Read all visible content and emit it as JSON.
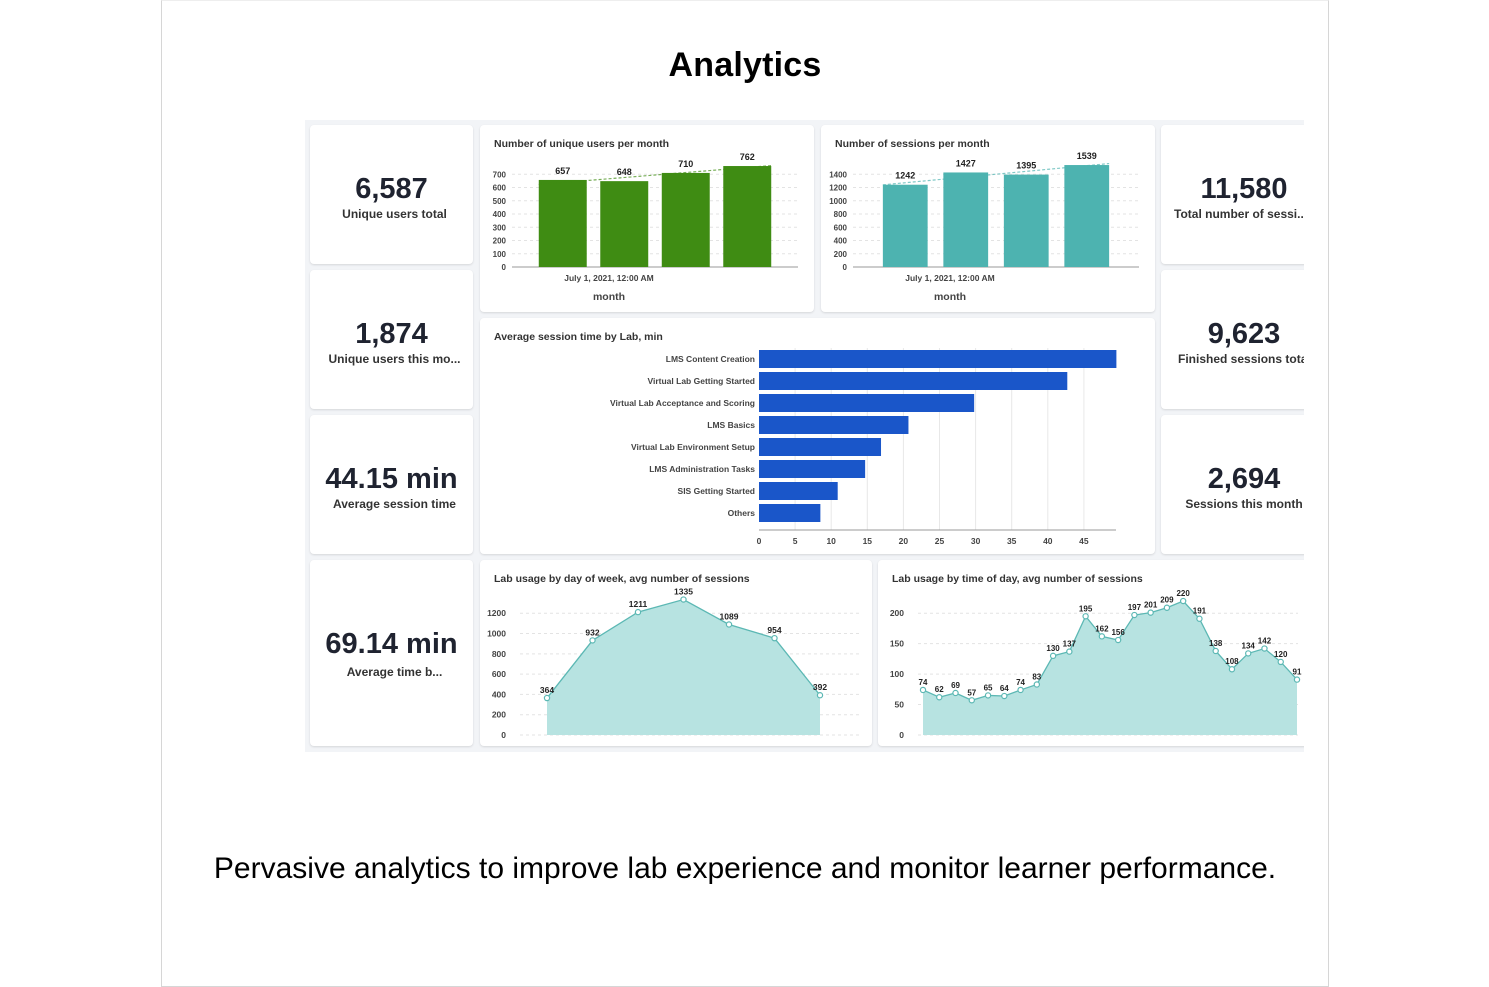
{
  "page": {
    "title": "Analytics",
    "caption": "Pervasive analytics to improve lab experience and monitor learner performance."
  },
  "kpis": {
    "unique_users_total": {
      "value": "6,587",
      "label": "Unique users total"
    },
    "unique_users_month": {
      "value": "1,874",
      "label": "Unique users this mo..."
    },
    "avg_session_time": {
      "value": "44.15 min",
      "label": "Average session time"
    },
    "avg_time_b": {
      "value": "69.14 min",
      "label": "Average time b..."
    },
    "total_sessions": {
      "value": "11,580",
      "label": "Total number of sessi..."
    },
    "finished_sessions": {
      "value": "9,623",
      "label": "Finished sessions tota"
    },
    "sessions_month": {
      "value": "2,694",
      "label": "Sessions this month"
    }
  },
  "colors": {
    "green_bar": "#3f8c13",
    "teal_bar": "#4db3b0",
    "blue_bar": "#1a56c9",
    "area_fill": "#b7e3e1",
    "area_line": "#5cb8b4"
  },
  "chart_data": [
    {
      "id": "users",
      "type": "bar",
      "title": "Number of unique users per month",
      "xlabel": "month",
      "x_tick_label": "July 1, 2021, 12:00 AM",
      "categories": [
        "",
        "",
        "",
        ""
      ],
      "values": [
        657,
        648,
        710,
        762
      ],
      "ylim": [
        0,
        800
      ],
      "yticks": [
        0,
        100,
        200,
        300,
        400,
        500,
        600,
        700
      ],
      "trend_line": true,
      "grid": true
    },
    {
      "id": "sessions",
      "type": "bar",
      "title": "Number of sessions per month",
      "xlabel": "month",
      "x_tick_label": "July 1, 2021, 12:00 AM",
      "categories": [
        "",
        "",
        "",
        ""
      ],
      "values": [
        1242,
        1427,
        1395,
        1539
      ],
      "ylim": [
        0,
        1600
      ],
      "yticks": [
        0,
        200,
        400,
        600,
        800,
        1000,
        1200,
        1400
      ],
      "trend_line": true,
      "grid": true
    },
    {
      "id": "avg_session_lab",
      "type": "bar",
      "orientation": "horizontal",
      "title": "Average session time by Lab, min",
      "categories": [
        "LMS Content Creation",
        "Virtual Lab Getting Started",
        "Virtual Lab Acceptance and Scoring",
        "LMS Basics",
        "Virtual Lab Environment Setup",
        "LMS Administration Tasks",
        "SIS Getting Started",
        "Others"
      ],
      "values": [
        49.5,
        42.7,
        29.8,
        20.7,
        16.9,
        14.7,
        10.9,
        8.5
      ],
      "xlim": [
        0,
        50
      ],
      "xticks": [
        0,
        5,
        10,
        15,
        20,
        25,
        30,
        35,
        40,
        45
      ],
      "grid": true
    },
    {
      "id": "day_of_week",
      "type": "area",
      "title": "Lab usage by day of week, avg number of sessions",
      "values": [
        364,
        932,
        1211,
        1335,
        1089,
        954,
        392
      ],
      "ylim": [
        0,
        1350
      ],
      "yticks": [
        0,
        200,
        400,
        600,
        800,
        1000,
        1200
      ],
      "grid": true
    },
    {
      "id": "time_of_day",
      "type": "area",
      "title": "Lab usage by time of day, avg number of sessions",
      "values": [
        74,
        62,
        69,
        57,
        65,
        64,
        74,
        83,
        130,
        137,
        195,
        162,
        156,
        197,
        201,
        209,
        220,
        191,
        138,
        108,
        134,
        142,
        120,
        91
      ],
      "ylim": [
        0,
        225
      ],
      "yticks": [
        0,
        50,
        100,
        150,
        200
      ],
      "grid": true
    }
  ]
}
